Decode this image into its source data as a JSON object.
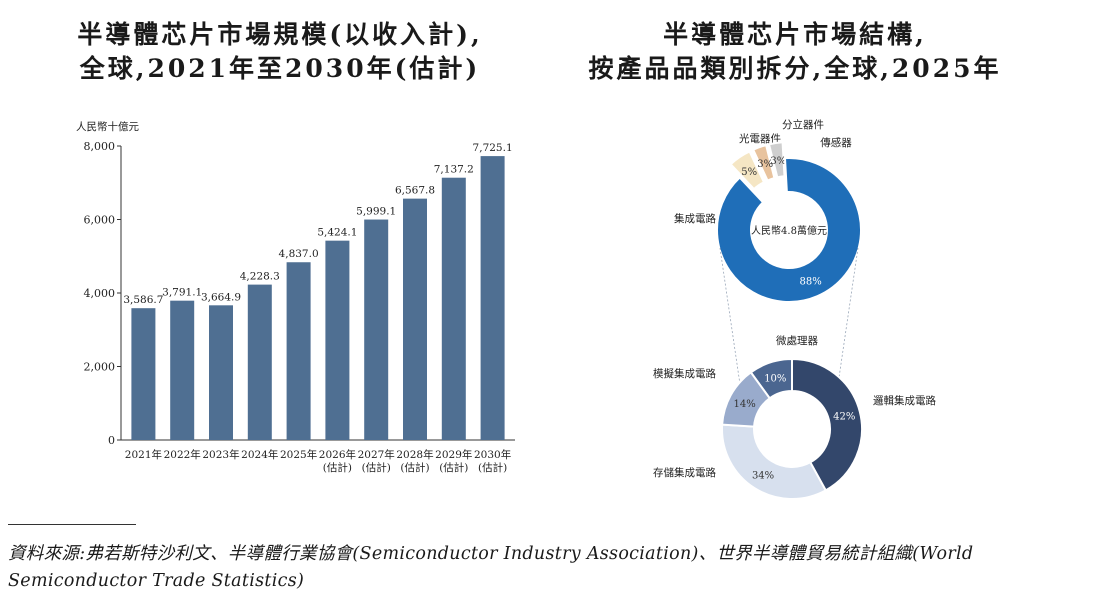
{
  "titles": {
    "left_line1": "半導體芯片市場規模(以收入計),",
    "left_line2": "全球,2021年至2030年(估計)",
    "right_line1": "半導體芯片市場結構,",
    "right_line2": "按產品品類別拆分,全球,2025年"
  },
  "chart_data": [
    {
      "type": "bar",
      "ylabel": "人民幣十億元",
      "ylim": [
        0,
        8000
      ],
      "yticks": [
        "0",
        "2,000",
        "4,000",
        "6,000",
        "8,000"
      ],
      "ytick_values": [
        0,
        2000,
        4000,
        6000,
        8000
      ],
      "categories": [
        "2021年",
        "2022年",
        "2023年",
        "2024年",
        "2025年",
        "2026年",
        "2027年",
        "2028年",
        "2029年",
        "2030年"
      ],
      "category_sublabels": [
        "",
        "",
        "",
        "",
        "",
        "(估計)",
        "(估計)",
        "(估計)",
        "(估計)",
        "(估計)"
      ],
      "values": [
        3586.7,
        3791.1,
        3664.9,
        4228.3,
        4837.0,
        5424.1,
        5999.1,
        6567.8,
        7137.2,
        7725.1
      ],
      "value_labels": [
        "3,586.7",
        "3,791.1",
        "3,664.9",
        "4,228.3",
        "4,837.0",
        "5,424.1",
        "5,999.1",
        "6,567.8",
        "7,137.2",
        "7,725.1"
      ],
      "color": "#4f6f92",
      "grid": false
    },
    {
      "type": "pie",
      "center_label": "人民幣4.8萬億元",
      "slices": [
        {
          "label": "集成電路",
          "value": 88,
          "pct": "88%",
          "color": "#1f6eb8"
        },
        {
          "label": "光電器件",
          "value": 5,
          "pct": "5%",
          "color": "#f5e6c4"
        },
        {
          "label": "分立器件",
          "value": 3,
          "pct": "3%",
          "color": "#e8c39e"
        },
        {
          "label": "傳感器",
          "value": 3,
          "pct": "3%",
          "color": "#cfcfcf"
        }
      ]
    },
    {
      "type": "pie",
      "slices": [
        {
          "label": "微處理器",
          "value": 10,
          "pct": "10%",
          "color": "#4b6690"
        },
        {
          "label": "邏輯集成電路",
          "value": 42,
          "pct": "42%",
          "color": "#33476b"
        },
        {
          "label": "存儲集成電路",
          "value": 34,
          "pct": "34%",
          "color": "#d7e0ee"
        },
        {
          "label": "模擬集成電路",
          "value": 14,
          "pct": "14%",
          "color": "#99abcc"
        }
      ]
    }
  ],
  "source": {
    "prefix": "資料來源:",
    "text": "弗若斯特沙利文、半導體行業協會(Semiconductor Industry Association)、世界半導體貿易統計組織(World Semiconductor Trade Statistics)"
  }
}
